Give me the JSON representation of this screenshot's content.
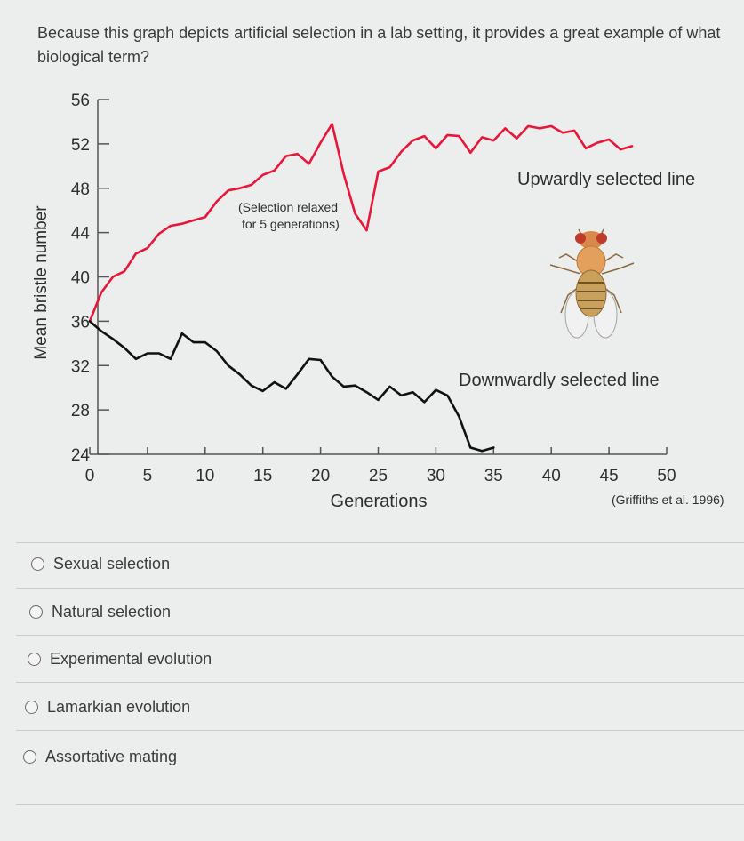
{
  "question": "Because this graph depicts artificial selection in a lab setting, it provides a great example of what biological term?",
  "options": [
    "Sexual selection",
    "Natural selection",
    "Experimental evolution",
    "Lamarkian evolution",
    "Assortative mating"
  ],
  "colors": {
    "upward": "#e8173a",
    "downward": "#111111",
    "background": "#eceded"
  },
  "chart_data": {
    "type": "line",
    "xlabel": "Generations",
    "ylabel": "Mean bristle number",
    "xlim": [
      0,
      50
    ],
    "ylim": [
      24,
      56
    ],
    "xticks": [
      0,
      5,
      10,
      15,
      20,
      25,
      30,
      35,
      40,
      45,
      50
    ],
    "yticks": [
      24,
      28,
      32,
      36,
      40,
      44,
      48,
      52,
      56
    ],
    "annotation": "(Selection relaxed for 5 generations)",
    "annotation_lines": [
      "(Selection relaxed",
      "for 5 generations)"
    ],
    "source": "(Griffiths et al. 1996)",
    "series": [
      {
        "name": "Upwardly selected line",
        "x": [
          0,
          1,
          2,
          3,
          4,
          5,
          6,
          7,
          8,
          9,
          10,
          11,
          12,
          13,
          14,
          15,
          16,
          17,
          18,
          19,
          20,
          21,
          22,
          23,
          24,
          25,
          26,
          27,
          28,
          29,
          30,
          31,
          32,
          33,
          34,
          35,
          36,
          37,
          38,
          39,
          40,
          41,
          42,
          43,
          44,
          45,
          46,
          47
        ],
        "values": [
          36,
          38.6,
          40,
          40.5,
          42.1,
          42.6,
          43.9,
          44.6,
          44.8,
          45.1,
          45.4,
          46.8,
          47.8,
          48,
          48.3,
          49.2,
          49.6,
          50.9,
          51.1,
          50.2,
          52.1,
          53.8,
          49.3,
          45.7,
          44.2,
          49.5,
          49.9,
          51.3,
          52.3,
          52.7,
          51.6,
          52.8,
          52.7,
          51.2,
          52.6,
          52.3,
          53.4,
          52.5,
          53.6,
          53.4,
          53.6,
          53.0,
          53.2,
          51.6,
          52.1,
          52.4,
          51.5,
          51.8
        ]
      },
      {
        "name": "Downwardly selected line",
        "x": [
          0,
          1,
          2,
          3,
          4,
          5,
          6,
          7,
          8,
          9,
          10,
          11,
          12,
          13,
          14,
          15,
          16,
          17,
          18,
          19,
          20,
          21,
          22,
          23,
          24,
          25,
          26,
          27,
          28,
          29,
          30,
          31,
          32,
          33,
          34,
          35
        ],
        "values": [
          36,
          35.1,
          34.4,
          33.6,
          32.6,
          33.1,
          33.1,
          32.6,
          34.9,
          34.1,
          34.1,
          33.3,
          32,
          31.2,
          30.2,
          29.7,
          30.5,
          29.9,
          31.2,
          32.6,
          32.5,
          31,
          30.1,
          30.2,
          29.6,
          28.9,
          30.1,
          29.3,
          29.6,
          28.7,
          29.8,
          29.3,
          27.4,
          24.6,
          24.3,
          24.6
        ]
      }
    ]
  }
}
